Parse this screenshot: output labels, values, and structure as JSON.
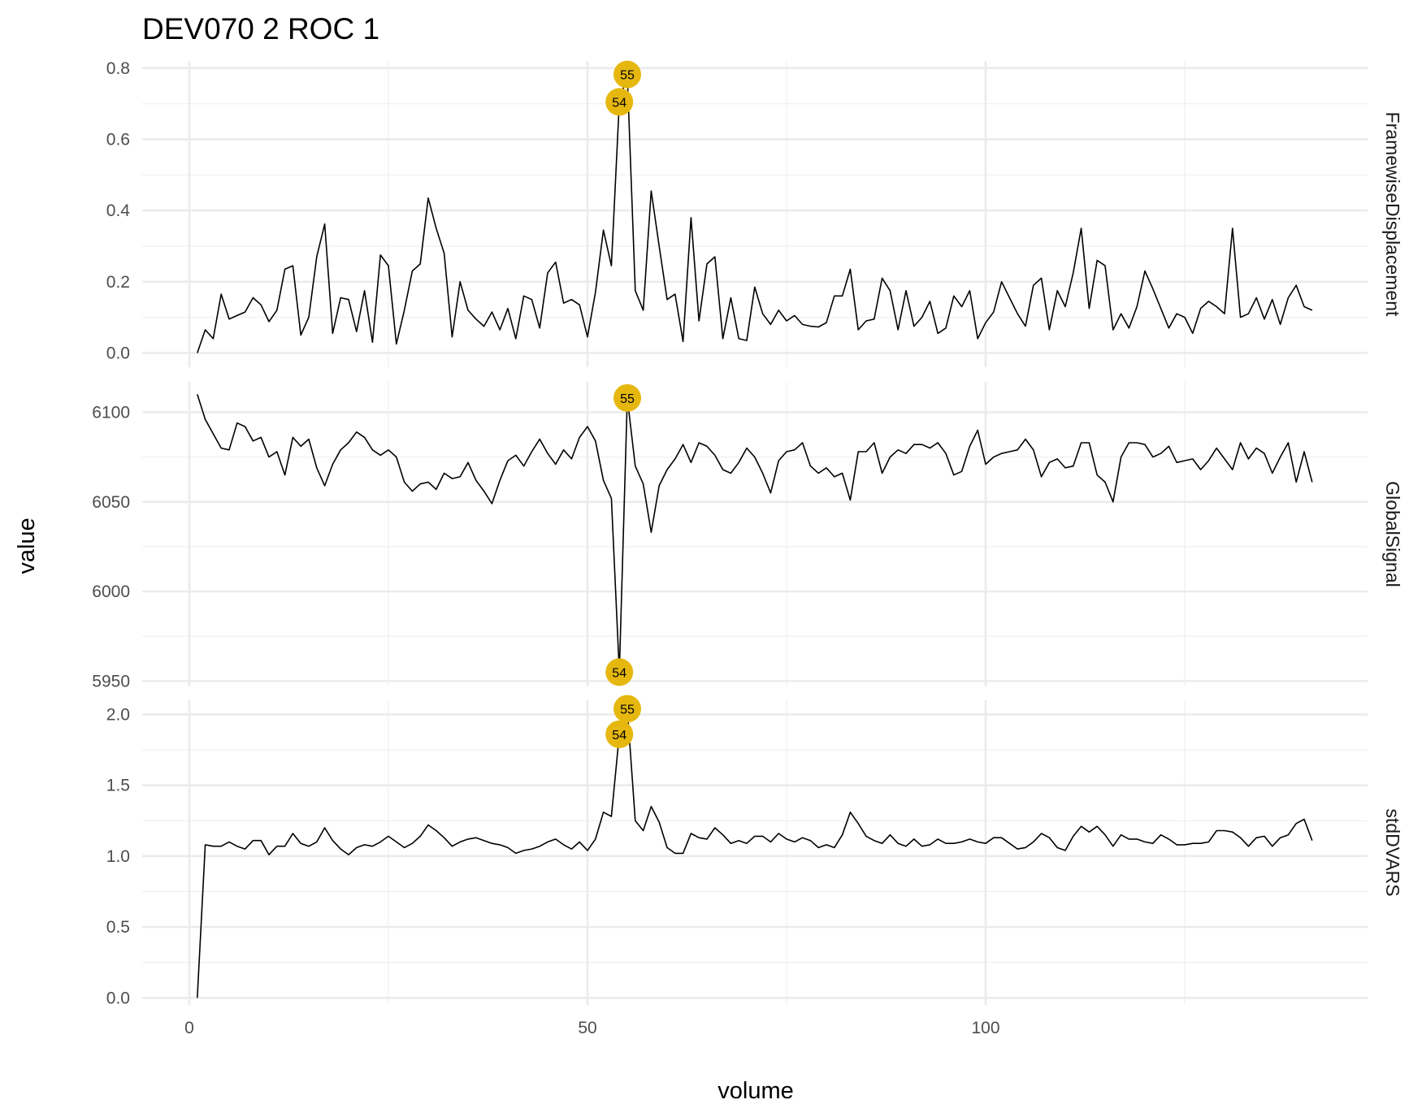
{
  "chart_data": {
    "type": "line",
    "title": "DEV070  2  ROC  1",
    "xlabel": "volume",
    "ylabel": "value",
    "xlim": [
      0,
      140
    ],
    "x_ticks": [
      0,
      50,
      100
    ],
    "x_tick_labels": [
      "0",
      "50",
      "100"
    ],
    "grid": true,
    "highlight_color": "#E6B80F",
    "line_color": "#000000",
    "panels": [
      {
        "name": "FramewiseDisplacement",
        "ylim": [
          -0.04,
          0.82
        ],
        "y_ticks": [
          0.0,
          0.2,
          0.4,
          0.6,
          0.8
        ],
        "y_tick_labels": [
          "0.0",
          "0.2",
          "0.4",
          "0.6",
          "0.8"
        ],
        "highlights": [
          {
            "x": 54,
            "y": 0.705,
            "label": "54"
          },
          {
            "x": 55,
            "y": 0.782,
            "label": "55"
          }
        ],
        "values": [
          0.0,
          0.065,
          0.04,
          0.165,
          0.095,
          0.105,
          0.115,
          0.155,
          0.135,
          0.088,
          0.12,
          0.235,
          0.245,
          0.05,
          0.1,
          0.27,
          0.362,
          0.055,
          0.155,
          0.15,
          0.06,
          0.175,
          0.03,
          0.275,
          0.245,
          0.025,
          0.12,
          0.23,
          0.25,
          0.435,
          0.35,
          0.28,
          0.045,
          0.2,
          0.12,
          0.095,
          0.075,
          0.115,
          0.065,
          0.125,
          0.04,
          0.16,
          0.15,
          0.07,
          0.225,
          0.255,
          0.14,
          0.15,
          0.135,
          0.045,
          0.17,
          0.345,
          0.245,
          0.705,
          0.782,
          0.175,
          0.12,
          0.455,
          0.3,
          0.15,
          0.165,
          0.032,
          0.38,
          0.09,
          0.25,
          0.27,
          0.04,
          0.155,
          0.04,
          0.035,
          0.185,
          0.11,
          0.08,
          0.12,
          0.09,
          0.105,
          0.08,
          0.075,
          0.073,
          0.085,
          0.16,
          0.16,
          0.235,
          0.065,
          0.09,
          0.095,
          0.21,
          0.175,
          0.065,
          0.175,
          0.075,
          0.1,
          0.145,
          0.055,
          0.07,
          0.16,
          0.13,
          0.175,
          0.04,
          0.085,
          0.115,
          0.2,
          0.155,
          0.11,
          0.075,
          0.19,
          0.21,
          0.065,
          0.175,
          0.13,
          0.225,
          0.35,
          0.125,
          0.26,
          0.245,
          0.065,
          0.11,
          0.07,
          0.13,
          0.23,
          0.18,
          0.125,
          0.07,
          0.11,
          0.1,
          0.055,
          0.125,
          0.145,
          0.13,
          0.11,
          0.35,
          0.1,
          0.11,
          0.155,
          0.095,
          0.15,
          0.08,
          0.155,
          0.19,
          0.13,
          0.12
        ]
      },
      {
        "name": "GlobalSignal",
        "ylim": [
          5947,
          6117
        ],
        "y_ticks": [
          5950,
          6000,
          6050,
          6100
        ],
        "y_tick_labels": [
          "5950",
          "6000",
          "6050",
          "6100"
        ],
        "highlights": [
          {
            "x": 54,
            "y": 5955,
            "label": "54"
          },
          {
            "x": 55,
            "y": 6108,
            "label": "55"
          }
        ],
        "values": [
          6110,
          6096,
          6088,
          6080,
          6079,
          6094,
          6092,
          6084,
          6086,
          6075,
          6078,
          6065,
          6086,
          6081,
          6085,
          6069,
          6059,
          6071,
          6079,
          6083,
          6089,
          6086,
          6079,
          6076,
          6079,
          6075,
          6061,
          6056,
          6060,
          6061,
          6057,
          6066,
          6063,
          6064,
          6072,
          6062,
          6056,
          6049,
          6062,
          6073,
          6076,
          6070,
          6078,
          6085,
          6077,
          6071,
          6079,
          6074,
          6086,
          6092,
          6084,
          6062,
          6052,
          5955,
          6108,
          6070,
          6060,
          6033,
          6059,
          6068,
          6074,
          6082,
          6072,
          6083,
          6081,
          6076,
          6068,
          6066,
          6072,
          6080,
          6075,
          6066,
          6055,
          6073,
          6078,
          6079,
          6083,
          6070,
          6066,
          6069,
          6064,
          6066,
          6051,
          6078,
          6078,
          6083,
          6066,
          6075,
          6079,
          6077,
          6082,
          6082,
          6080,
          6083,
          6077,
          6065,
          6067,
          6081,
          6090,
          6071,
          6075,
          6077,
          6078,
          6079,
          6085,
          6079,
          6064,
          6072,
          6074,
          6069,
          6070,
          6083,
          6083,
          6065,
          6061,
          6050,
          6075,
          6083,
          6083,
          6082,
          6075,
          6077,
          6081,
          6072,
          6073,
          6074,
          6068,
          6073,
          6080,
          6074,
          6068,
          6083,
          6074,
          6080,
          6077,
          6066,
          6075,
          6083,
          6061,
          6078,
          6061
        ]
      },
      {
        "name": "stdDVARS",
        "ylim": [
          -0.05,
          2.1
        ],
        "y_ticks": [
          0.0,
          0.5,
          1.0,
          1.5,
          2.0
        ],
        "y_tick_labels": [
          "0.0",
          "0.5",
          "1.0",
          "1.5",
          "2.0"
        ],
        "highlights": [
          {
            "x": 54,
            "y": 1.86,
            "label": "54"
          },
          {
            "x": 55,
            "y": 2.04,
            "label": "55"
          }
        ],
        "values": [
          0.0,
          1.08,
          1.07,
          1.07,
          1.1,
          1.07,
          1.05,
          1.11,
          1.11,
          1.01,
          1.07,
          1.07,
          1.16,
          1.09,
          1.07,
          1.1,
          1.2,
          1.11,
          1.05,
          1.01,
          1.06,
          1.08,
          1.07,
          1.1,
          1.14,
          1.1,
          1.06,
          1.09,
          1.14,
          1.22,
          1.18,
          1.13,
          1.07,
          1.1,
          1.12,
          1.13,
          1.11,
          1.09,
          1.08,
          1.06,
          1.02,
          1.04,
          1.05,
          1.07,
          1.1,
          1.12,
          1.08,
          1.05,
          1.1,
          1.04,
          1.12,
          1.31,
          1.28,
          1.86,
          2.04,
          1.25,
          1.18,
          1.35,
          1.24,
          1.06,
          1.02,
          1.02,
          1.16,
          1.13,
          1.12,
          1.2,
          1.15,
          1.09,
          1.11,
          1.09,
          1.14,
          1.14,
          1.1,
          1.16,
          1.12,
          1.1,
          1.13,
          1.11,
          1.06,
          1.08,
          1.06,
          1.15,
          1.31,
          1.23,
          1.14,
          1.11,
          1.09,
          1.15,
          1.09,
          1.07,
          1.12,
          1.07,
          1.08,
          1.12,
          1.09,
          1.09,
          1.1,
          1.12,
          1.1,
          1.09,
          1.13,
          1.13,
          1.09,
          1.05,
          1.06,
          1.1,
          1.16,
          1.13,
          1.06,
          1.04,
          1.14,
          1.21,
          1.17,
          1.21,
          1.15,
          1.07,
          1.15,
          1.12,
          1.12,
          1.1,
          1.09,
          1.15,
          1.12,
          1.08,
          1.08,
          1.09,
          1.09,
          1.1,
          1.18,
          1.18,
          1.17,
          1.13,
          1.07,
          1.13,
          1.14,
          1.07,
          1.13,
          1.15,
          1.23,
          1.26,
          1.11
        ]
      }
    ]
  }
}
